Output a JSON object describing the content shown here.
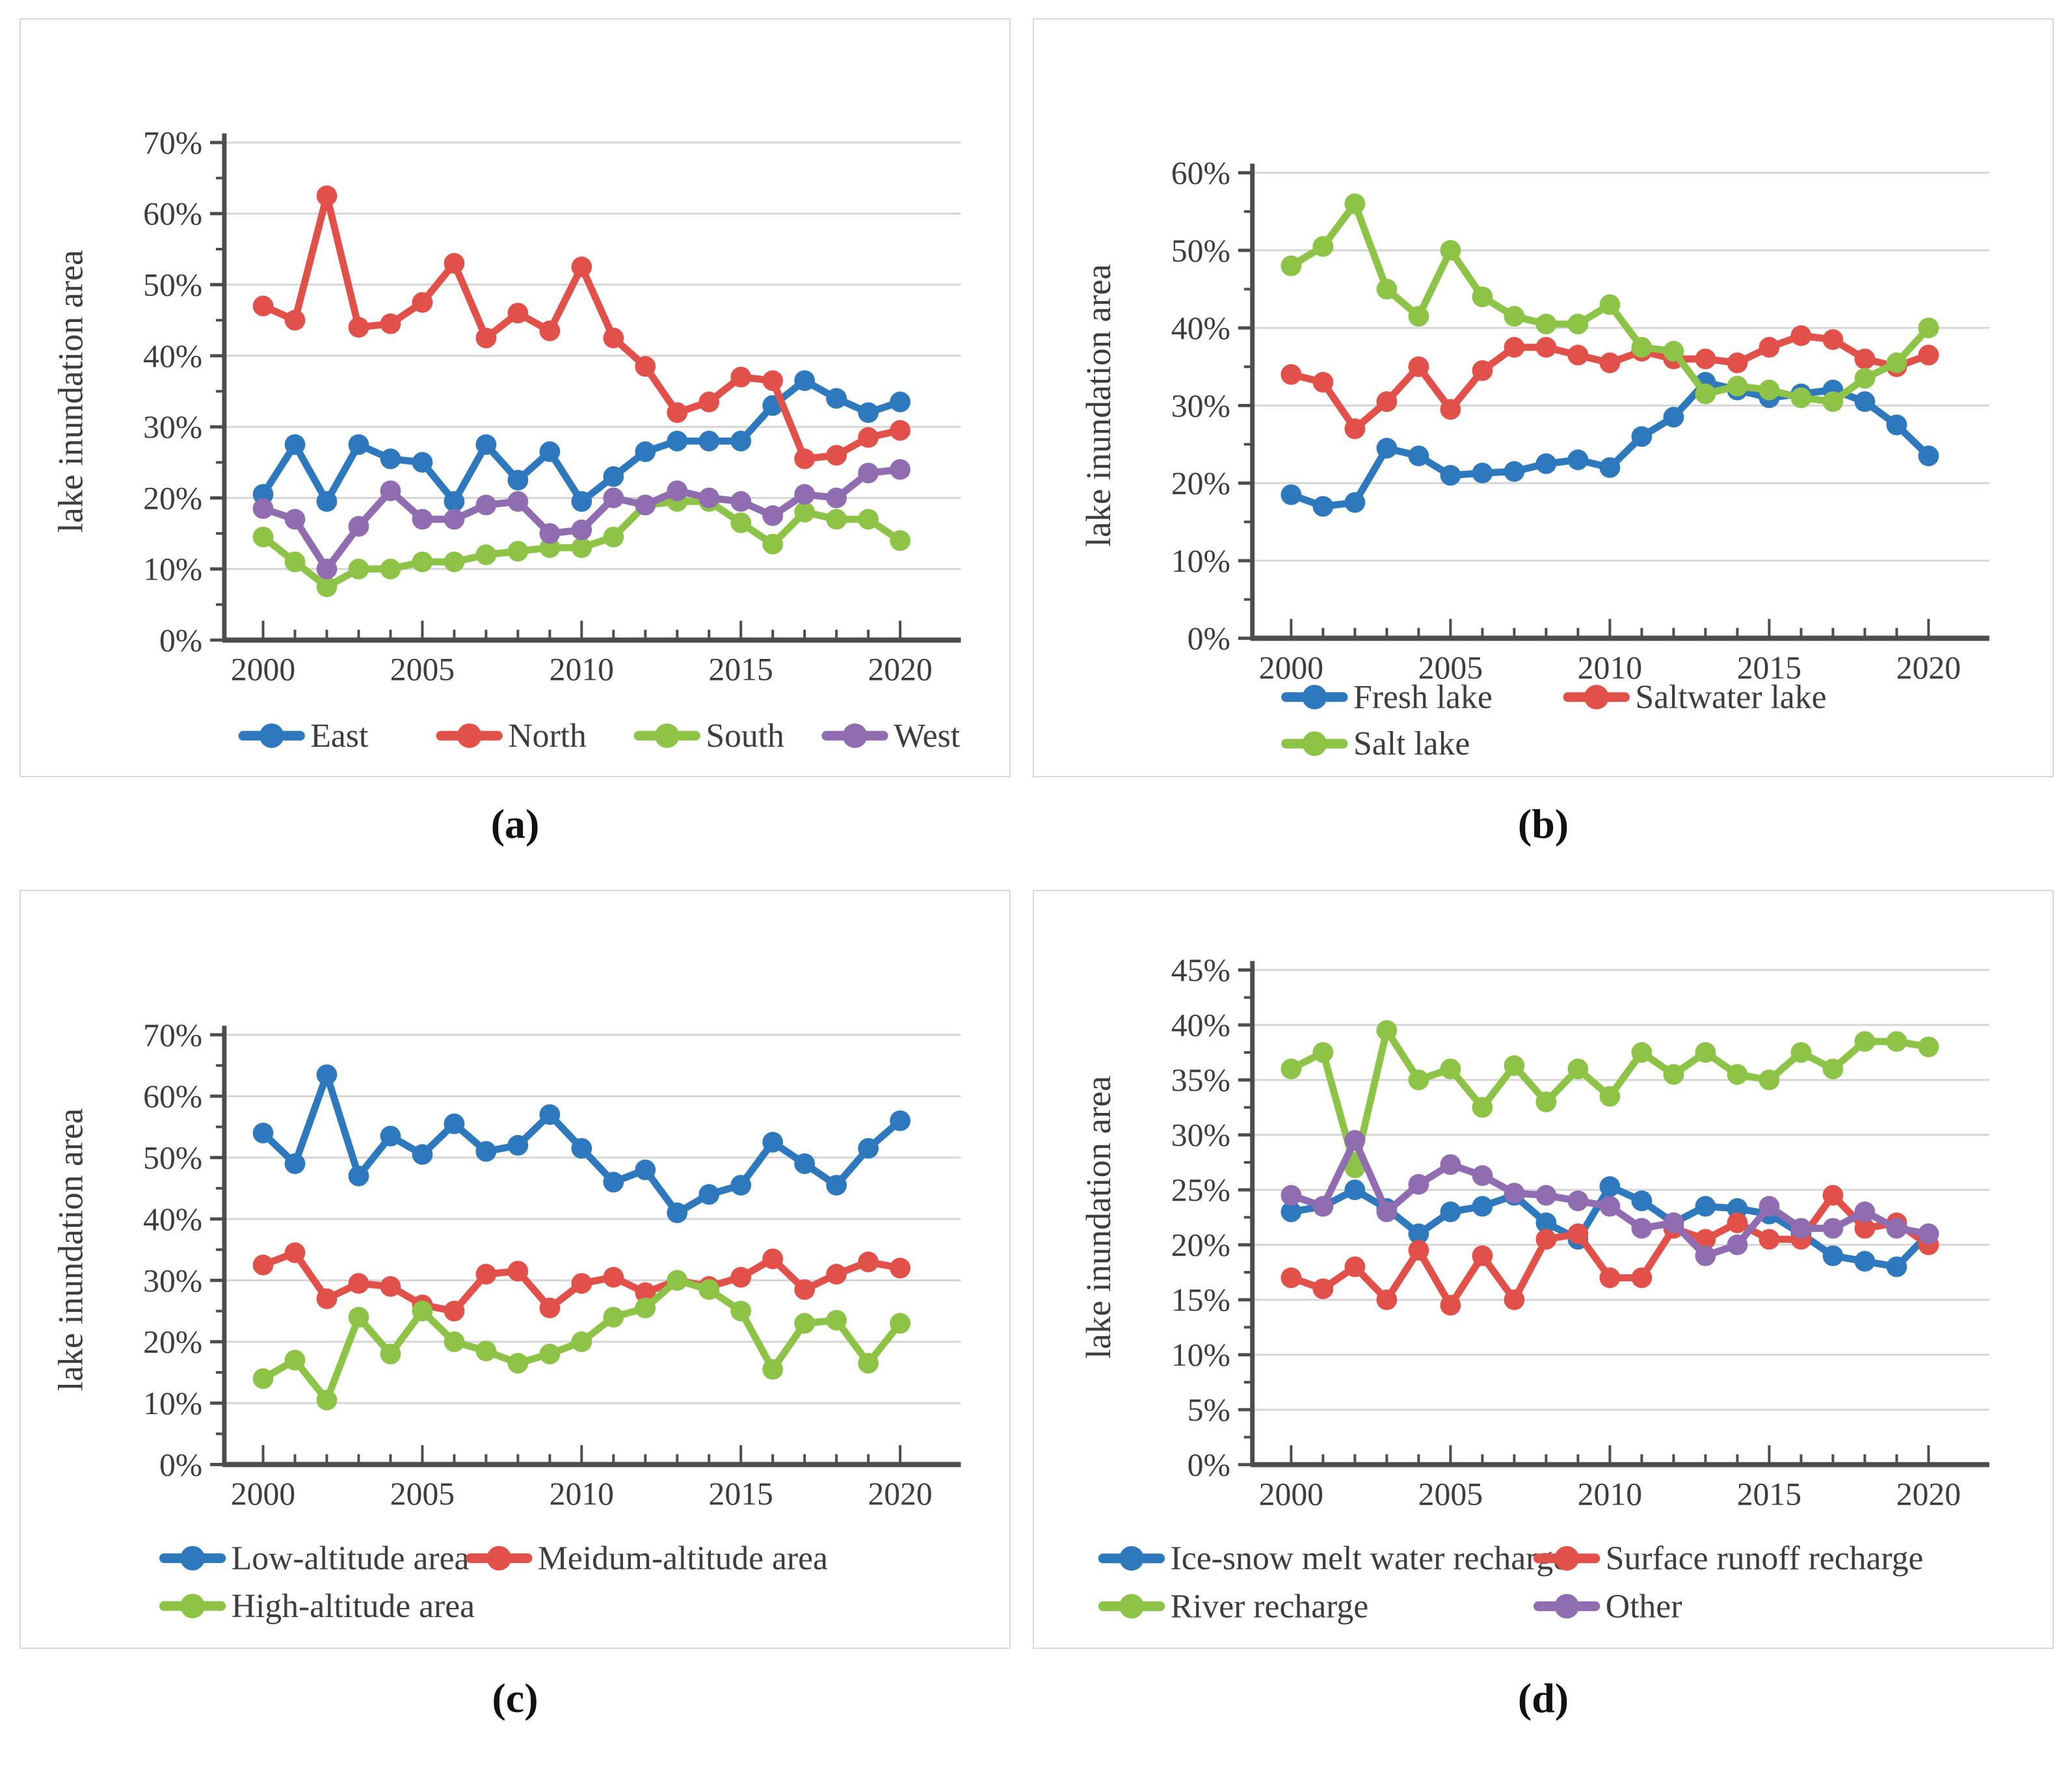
{
  "figure": {
    "ylabel": "lake inundation area",
    "years": [
      2000,
      2001,
      2002,
      2003,
      2004,
      2005,
      2006,
      2007,
      2008,
      2009,
      2010,
      2011,
      2012,
      2013,
      2014,
      2015,
      2016,
      2017,
      2018,
      2019,
      2020
    ],
    "xticklabels": [
      "2000",
      "2005",
      "2010",
      "2015",
      "2020"
    ]
  },
  "colors": {
    "blue": "#2E79BD",
    "red": "#E15049",
    "green": "#8DC448",
    "purple": "#8F6DB0",
    "grid": "#D6D6D6",
    "axis": "#4D4D4D",
    "text": "#3D3D3D"
  },
  "chart_data": [
    {
      "id": "a",
      "caption": "(a)",
      "type": "line",
      "ylabel": "lake inundation area",
      "xlabel": "",
      "ylim": [
        0,
        70
      ],
      "ytick_step": 10,
      "yticklabels": [
        "0%",
        "10%",
        "20%",
        "30%",
        "40%",
        "50%",
        "60%",
        "70%"
      ],
      "xticklabels": [
        "2000",
        "2005",
        "2010",
        "2015",
        "2020"
      ],
      "grid": true,
      "legend_position": "bottom",
      "series": [
        {
          "name": "East",
          "color_key": "blue",
          "values": [
            20.5,
            27.5,
            19.5,
            27.5,
            25.5,
            25,
            19.5,
            27.5,
            22.5,
            26.5,
            19.5,
            23,
            26.5,
            28,
            28,
            28,
            33,
            36.5,
            34,
            32,
            33.5
          ]
        },
        {
          "name": "North",
          "color_key": "red",
          "values": [
            47,
            45,
            62.5,
            44,
            44.5,
            47.5,
            53,
            42.5,
            46,
            43.5,
            52.5,
            42.5,
            38.5,
            32,
            33.5,
            37,
            36.5,
            25.5,
            26,
            28.5,
            29.5
          ]
        },
        {
          "name": "South",
          "color_key": "green",
          "values": [
            14.5,
            11,
            7.5,
            10,
            10,
            11,
            11,
            12,
            12.5,
            13,
            13,
            14.5,
            19,
            19.5,
            19.5,
            16.5,
            13.5,
            18,
            17,
            17,
            14
          ]
        },
        {
          "name": "West",
          "color_key": "purple",
          "values": [
            18.5,
            17,
            10,
            16,
            21,
            17,
            17,
            19,
            19.5,
            15,
            15.5,
            20,
            19,
            21,
            20,
            19.5,
            17.5,
            20.5,
            20,
            23.5,
            24
          ]
        }
      ]
    },
    {
      "id": "b",
      "caption": "(b)",
      "type": "line",
      "ylabel": "lake inundation area",
      "xlabel": "",
      "ylim": [
        0,
        60
      ],
      "ytick_step": 10,
      "yticklabels": [
        "0%",
        "10%",
        "20%",
        "30%",
        "40%",
        "50%",
        "60%"
      ],
      "xticklabels": [
        "2000",
        "2005",
        "2010",
        "2015",
        "2020"
      ],
      "grid": true,
      "legend_position": "bottom",
      "series": [
        {
          "name": "Fresh lake",
          "color_key": "blue",
          "values": [
            18.5,
            17,
            17.5,
            24.5,
            23.5,
            21,
            21.3,
            21.5,
            22.5,
            23,
            22,
            26,
            28.5,
            33,
            32,
            31,
            31.5,
            32,
            30.5,
            27.5,
            23.5
          ]
        },
        {
          "name": "Saltwater lake",
          "color_key": "red",
          "values": [
            34,
            33,
            27,
            30.5,
            35,
            29.5,
            34.5,
            37.5,
            37.5,
            36.5,
            35.5,
            37,
            36,
            36,
            35.5,
            37.5,
            39,
            38.5,
            36,
            35,
            36.5
          ]
        },
        {
          "name": "Salt lake",
          "color_key": "green",
          "values": [
            48,
            50.5,
            56,
            45,
            41.5,
            50,
            44,
            41.5,
            40.5,
            40.5,
            43,
            37.5,
            37,
            31.5,
            32.5,
            32,
            31,
            30.5,
            33.5,
            35.5,
            40
          ]
        }
      ]
    },
    {
      "id": "c",
      "caption": "(c)",
      "type": "line",
      "ylabel": "lake inundation area",
      "xlabel": "",
      "ylim": [
        0,
        70
      ],
      "ytick_step": 10,
      "yticklabels": [
        "0%",
        "10%",
        "20%",
        "30%",
        "40%",
        "50%",
        "60%",
        "70%"
      ],
      "xticklabels": [
        "2000",
        "2005",
        "2010",
        "2015",
        "2020"
      ],
      "grid": true,
      "legend_position": "bottom",
      "series": [
        {
          "name": "Low-altitude area",
          "color_key": "blue",
          "values": [
            54,
            49,
            63.5,
            47,
            53.5,
            50.5,
            55.5,
            51,
            52,
            57,
            51.5,
            46,
            48,
            41,
            44,
            45.5,
            52.5,
            49,
            45.5,
            51.5,
            56
          ]
        },
        {
          "name": "Meidum-altitude area",
          "color_key": "red",
          "values": [
            32.5,
            34.5,
            27,
            29.5,
            29,
            26,
            25,
            31,
            31.5,
            25.5,
            29.5,
            30.5,
            28,
            30,
            29,
            30.5,
            33.5,
            28.5,
            31,
            33,
            32
          ]
        },
        {
          "name": "High-altitude area",
          "color_key": "green",
          "values": [
            14,
            17,
            10.5,
            24,
            18,
            25,
            20,
            18.5,
            16.5,
            18,
            20,
            24,
            25.5,
            30,
            28.5,
            25,
            15.5,
            23,
            23.5,
            16.5,
            23
          ]
        }
      ]
    },
    {
      "id": "d",
      "caption": "(d)",
      "type": "line",
      "ylabel": "lake inundation area",
      "xlabel": "",
      "ylim": [
        0,
        45
      ],
      "ytick_step": 5,
      "yticklabels": [
        "0%",
        "5%",
        "10%",
        "15%",
        "20%",
        "25%",
        "30%",
        "35%",
        "40%",
        "45%"
      ],
      "xticklabels": [
        "2000",
        "2005",
        "2010",
        "2015",
        "2020"
      ],
      "grid": true,
      "legend_position": "bottom",
      "series": [
        {
          "name": "Ice-snow melt water recharge",
          "color_key": "blue",
          "values": [
            23,
            23.5,
            25,
            23.3,
            21,
            23,
            23.5,
            24.5,
            22,
            20.5,
            25.3,
            24,
            22,
            23.5,
            23.3,
            22.8,
            21,
            19,
            18.5,
            18,
            21
          ]
        },
        {
          "name": "Surface runoff recharge",
          "color_key": "red",
          "values": [
            17,
            16,
            18,
            15,
            19.5,
            14.5,
            19,
            15,
            20.5,
            21,
            17,
            17,
            21.5,
            20.5,
            22,
            20.5,
            20.5,
            24.5,
            21.5,
            22,
            20
          ]
        },
        {
          "name": "River recharge",
          "color_key": "green",
          "values": [
            36,
            37.5,
            27,
            39.5,
            35,
            36,
            32.5,
            36.3,
            33,
            36,
            33.5,
            37.5,
            35.5,
            37.5,
            35.5,
            35,
            37.5,
            36,
            38.5,
            38.5,
            38
          ]
        },
        {
          "name": "Other",
          "color_key": "purple",
          "values": [
            24.5,
            23.5,
            29.5,
            23,
            25.5,
            27.3,
            26.3,
            24.7,
            24.5,
            24,
            23.5,
            21.5,
            22,
            19,
            20,
            23.5,
            21.5,
            21.5,
            23,
            21.5,
            21
          ]
        }
      ]
    }
  ]
}
